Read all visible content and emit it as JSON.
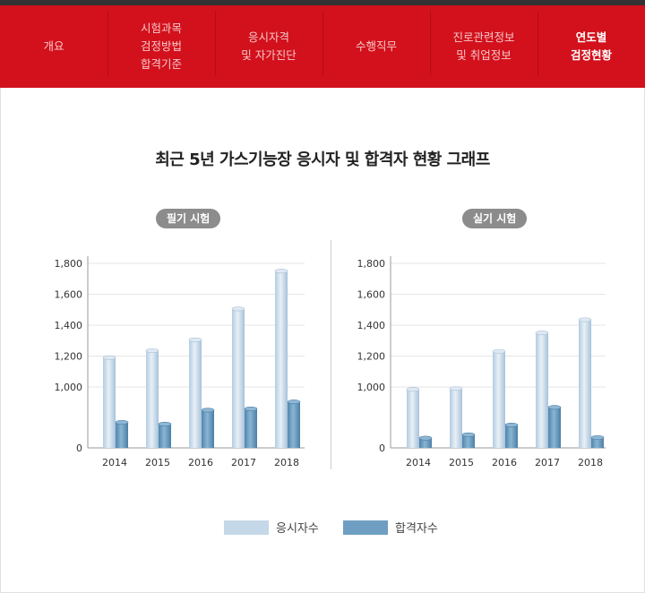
{
  "nav": {
    "items": [
      {
        "label": "개요",
        "active": false
      },
      {
        "label": "시험과목\n검정방법\n합격기준",
        "active": false
      },
      {
        "label": "응시자격\n및 자가진단",
        "active": false
      },
      {
        "label": "수행직무",
        "active": false
      },
      {
        "label": "진로관련정보\n및 취업정보",
        "active": false
      },
      {
        "label": "연도별\n검정현황",
        "active": true
      }
    ]
  },
  "page_title": "최근 5년 가스기능장 응시자 및 합격자 현황 그래프",
  "colors": {
    "nav_bg": "#d2111c",
    "applicants_bar": "#c5d8e8",
    "passers_bar": "#6e9fc2",
    "pill_bg": "#8c8c8c"
  },
  "legend": {
    "applicants": "응시자수",
    "passers": "합격자수"
  },
  "chart_data": [
    {
      "type": "bar",
      "title": "필기 시험",
      "categories": [
        "2014",
        "2015",
        "2016",
        "2017",
        "2018"
      ],
      "y_ticks": [
        0,
        1000,
        1200,
        1400,
        1600,
        1800
      ],
      "y_tick_labels": [
        "0",
        "1,000",
        "1,200",
        "1,400",
        "1,600",
        "1,800"
      ],
      "axis_break": {
        "below": 1000,
        "display_fraction": 0.4
      },
      "ylim": [
        0,
        1800
      ],
      "series": [
        {
          "name": "응시자수",
          "values": [
            1190,
            1235,
            1305,
            1505,
            1750
          ]
        },
        {
          "name": "합격자수",
          "values": [
            420,
            390,
            620,
            640,
            755
          ]
        }
      ],
      "grid": true,
      "legend": "bottom"
    },
    {
      "type": "bar",
      "title": "실기 시험",
      "categories": [
        "2014",
        "2015",
        "2016",
        "2017",
        "2018"
      ],
      "y_ticks": [
        0,
        1000,
        1200,
        1400,
        1600,
        1800
      ],
      "y_tick_labels": [
        "0",
        "1,000",
        "1,200",
        "1,400",
        "1,600",
        "1,800"
      ],
      "axis_break": {
        "below": 1000,
        "display_fraction": 0.4
      },
      "ylim": [
        0,
        1800
      ],
      "series": [
        {
          "name": "응시자수",
          "values": [
            960,
            975,
            1230,
            1350,
            1435
          ]
        },
        {
          "name": "합격자수",
          "values": [
            160,
            215,
            375,
            665,
            170
          ]
        }
      ],
      "grid": true,
      "legend": "bottom"
    }
  ]
}
